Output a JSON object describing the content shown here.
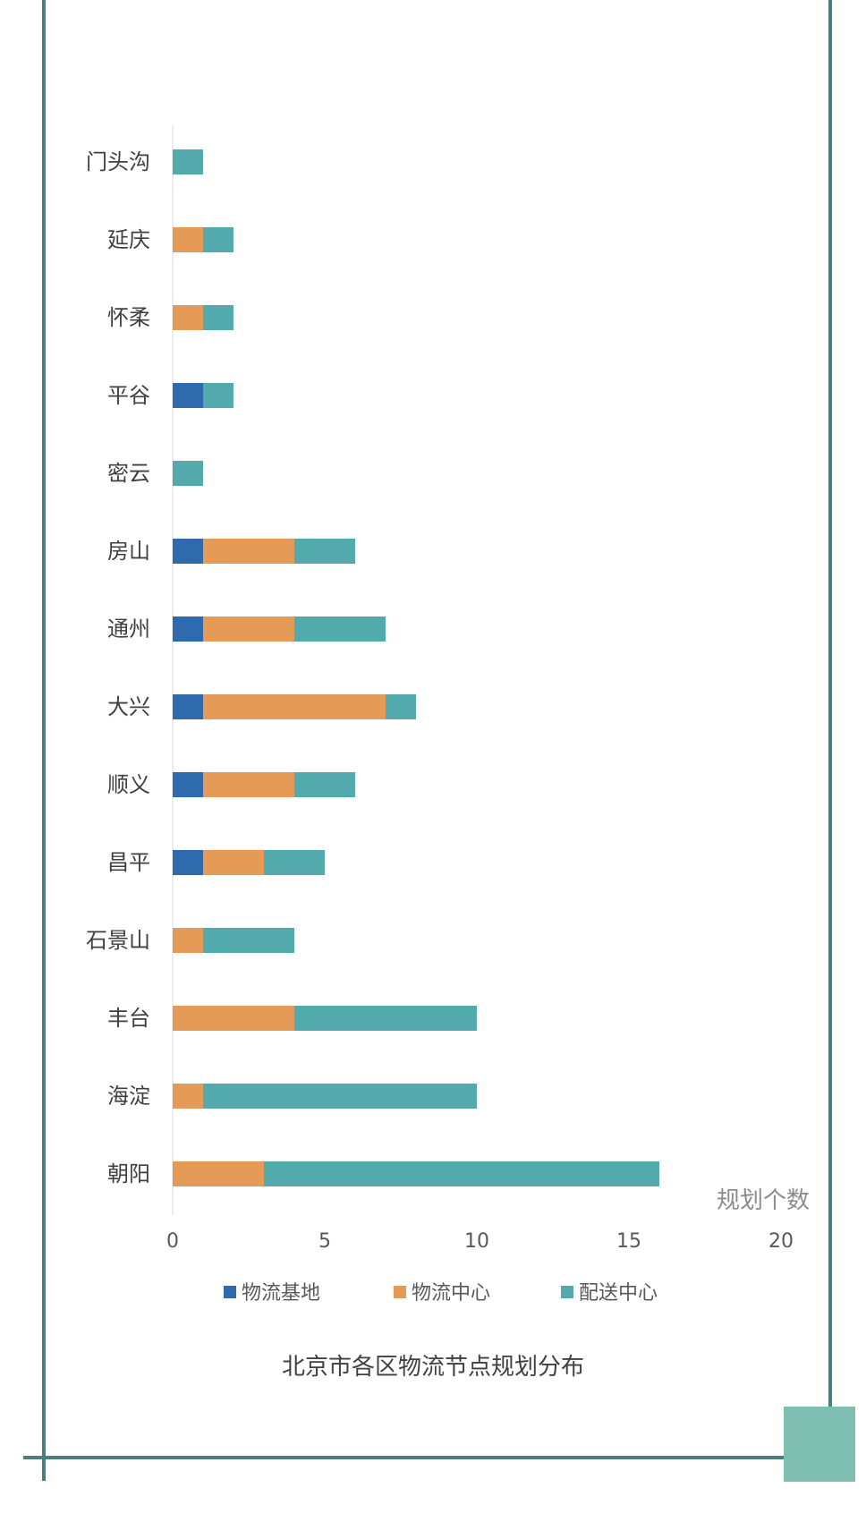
{
  "chart_data": {
    "type": "bar",
    "orientation": "horizontal",
    "stacked": true,
    "title": "北京市各区物流节点规划分布",
    "xlabel": "规划个数",
    "ylabel": "",
    "xlim": [
      0,
      20
    ],
    "xticks": [
      0,
      5,
      10,
      15,
      20
    ],
    "grid": false,
    "legend_position": "bottom",
    "categories": [
      "门头沟",
      "延庆",
      "怀柔",
      "平谷",
      "密云",
      "房山",
      "通州",
      "大兴",
      "顺义",
      "昌平",
      "石景山",
      "丰台",
      "海淀",
      "朝阳"
    ],
    "series": [
      {
        "name": "物流基地",
        "color": "#2e6aad",
        "values": [
          0,
          0,
          0,
          1,
          0,
          1,
          1,
          1,
          1,
          1,
          0,
          0,
          0,
          0
        ]
      },
      {
        "name": "物流中心",
        "color": "#e69a58",
        "values": [
          0,
          1,
          1,
          0,
          0,
          3,
          3,
          6,
          3,
          2,
          1,
          4,
          1,
          3
        ]
      },
      {
        "name": "配送中心",
        "color": "#52aaad",
        "values": [
          1,
          1,
          1,
          1,
          1,
          2,
          3,
          1,
          2,
          2,
          3,
          6,
          9,
          13
        ]
      }
    ]
  },
  "colors": {
    "frame": "#4f7d7d",
    "corner_accent": "#7fbfb2"
  }
}
